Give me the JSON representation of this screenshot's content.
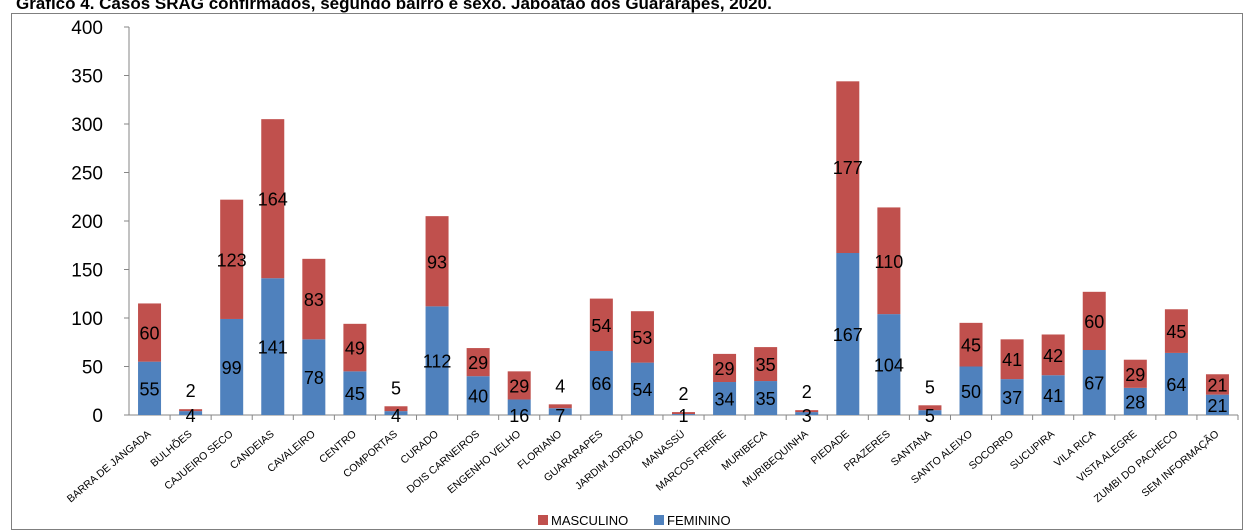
{
  "title": "Gráfico 4. Casos SRAG confirmados, segundo bairro e sexo. Jaboatão dos Guararapes, 2020.",
  "chart_data": {
    "type": "bar",
    "stacked": true,
    "title": "Gráfico 4. Casos SRAG confirmados, segundo bairro e sexo. Jaboatão dos Guararapes, 2020.",
    "categories": [
      "BARRA DE JANGADA",
      "BULHÕES",
      "CAJUEIRO SECO",
      "CANDEIAS",
      "CAVALEIRO",
      "CENTRO",
      "COMPORTAS",
      "CURADO",
      "DOIS CARNEIROS",
      "ENGENHO VELHO",
      "FLORIANO",
      "GUARARAPES",
      "JARDIM JORDÃO",
      "MANASSÚ",
      "MARCOS FREIRE",
      "MURIBECA",
      "MURIBEQUINHA",
      "PIEDADE",
      "PRAZERES",
      "SANTANA",
      "SANTO ALEIXO",
      "SOCORRO",
      "SUCUPIRA",
      "VILA RICA",
      "VISTA ALEGRE",
      "ZUMBI DO PACHECO",
      "SEM INFORMAÇÃO"
    ],
    "series": [
      {
        "name": "FEMININO",
        "color": "#4f81bd",
        "values": [
          55,
          4,
          99,
          141,
          78,
          45,
          4,
          112,
          40,
          16,
          7,
          66,
          54,
          1,
          34,
          35,
          3,
          167,
          104,
          5,
          50,
          37,
          41,
          67,
          28,
          64,
          21
        ]
      },
      {
        "name": "MASCULINO",
        "color": "#c0504d",
        "values": [
          60,
          2,
          123,
          164,
          83,
          49,
          5,
          93,
          29,
          29,
          4,
          54,
          53,
          2,
          29,
          35,
          2,
          177,
          110,
          5,
          45,
          41,
          42,
          60,
          29,
          45,
          21
        ]
      }
    ],
    "yticks": [
      0,
      50,
      100,
      150,
      200,
      250,
      300,
      350,
      400
    ],
    "ylim": [
      0,
      400
    ],
    "grid": false,
    "legend": "bottom",
    "legend_order": [
      "MASCULINO",
      "FEMININO"
    ]
  }
}
